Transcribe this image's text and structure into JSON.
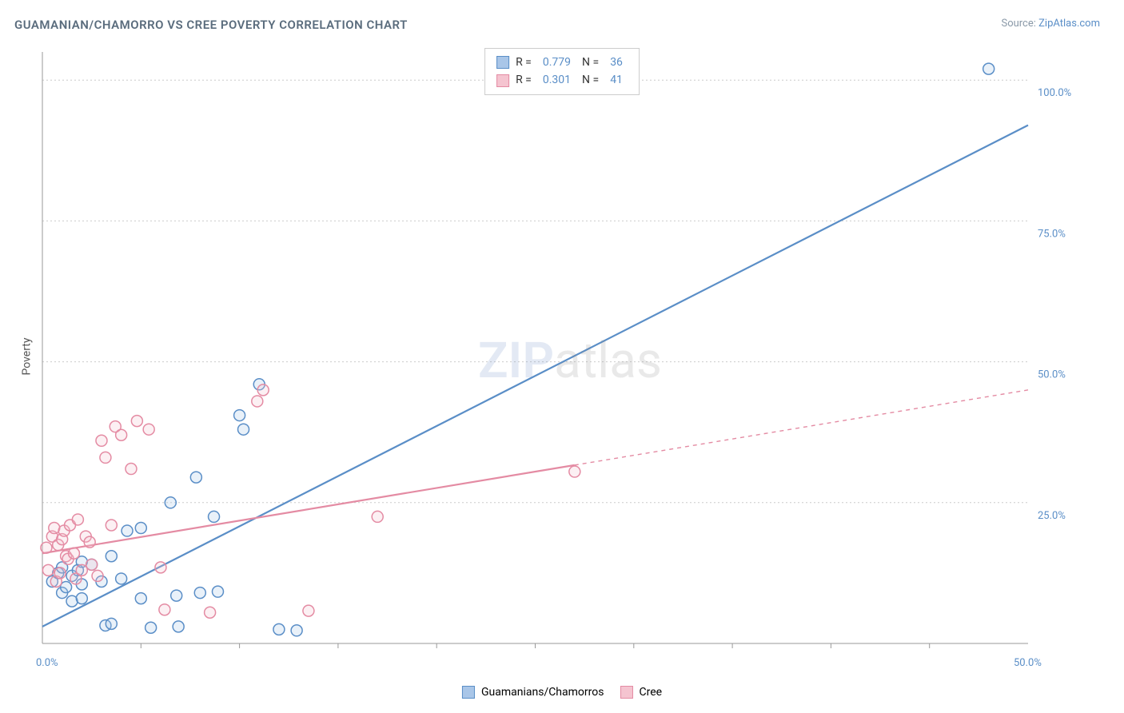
{
  "title": "GUAMANIAN/CHAMORRO VS CREE POVERTY CORRELATION CHART",
  "source_label": "Source: ",
  "source_name": "ZipAtlas.com",
  "ylabel": "Poverty",
  "watermark_a": "ZIP",
  "watermark_b": "atlas",
  "chart": {
    "type": "scatter",
    "xlim": [
      0,
      50
    ],
    "ylim": [
      0,
      105
    ],
    "x_ticks": [
      0,
      50
    ],
    "x_tick_labels": [
      "0.0%",
      "50.0%"
    ],
    "x_minor_ticks": [
      5,
      10,
      15,
      20,
      25,
      30,
      35,
      40,
      45
    ],
    "y_ticks": [
      25,
      50,
      75,
      100
    ],
    "y_tick_labels": [
      "25.0%",
      "50.0%",
      "75.0%",
      "100.0%"
    ],
    "background_color": "#ffffff",
    "grid_color": "#cccccc",
    "axis_color": "#999999",
    "tick_label_color": "#5a8ec7",
    "marker_radius": 7,
    "marker_stroke_width": 1.5,
    "marker_fill_opacity": 0.25,
    "series": [
      {
        "name": "Guamanians/Chamorros",
        "color": "#5a8ec7",
        "fill": "#a9c6e8",
        "R": "0.779",
        "N": "36",
        "trend": {
          "x1": 0,
          "y1": 3,
          "x2": 50,
          "y2": 92,
          "solid_x_end": 50
        },
        "points": [
          [
            0.5,
            11
          ],
          [
            0.8,
            12.5
          ],
          [
            1,
            9
          ],
          [
            1,
            13.5
          ],
          [
            1.2,
            10
          ],
          [
            1.5,
            7.5
          ],
          [
            1.5,
            12
          ],
          [
            1.8,
            13
          ],
          [
            2,
            8
          ],
          [
            2,
            10.5
          ],
          [
            2,
            14.5
          ],
          [
            2.5,
            14
          ],
          [
            3,
            11
          ],
          [
            3.2,
            3.2
          ],
          [
            3.5,
            15.5
          ],
          [
            3.5,
            3.5
          ],
          [
            4,
            11.5
          ],
          [
            4.3,
            20
          ],
          [
            5,
            8
          ],
          [
            5,
            20.5
          ],
          [
            5.5,
            2.8
          ],
          [
            6.5,
            25
          ],
          [
            6.8,
            8.5
          ],
          [
            6.9,
            3
          ],
          [
            7.8,
            29.5
          ],
          [
            8,
            9
          ],
          [
            8.7,
            22.5
          ],
          [
            8.9,
            9.2
          ],
          [
            10,
            40.5
          ],
          [
            10.2,
            38
          ],
          [
            11,
            46
          ],
          [
            12,
            2.5
          ],
          [
            12.9,
            2.3
          ],
          [
            48,
            102
          ]
        ]
      },
      {
        "name": "Cree",
        "color": "#e48ba3",
        "fill": "#f5c4d0",
        "R": "0.301",
        "N": "41",
        "trend": {
          "x1": 0,
          "y1": 16,
          "x2": 50,
          "y2": 45,
          "solid_x_end": 27
        },
        "points": [
          [
            0.2,
            17
          ],
          [
            0.3,
            13
          ],
          [
            0.5,
            19
          ],
          [
            0.6,
            20.5
          ],
          [
            0.7,
            11
          ],
          [
            0.8,
            17.5
          ],
          [
            0.9,
            12.5
          ],
          [
            1,
            18.5
          ],
          [
            1.1,
            20
          ],
          [
            1.2,
            15.5
          ],
          [
            1.3,
            15
          ],
          [
            1.4,
            21
          ],
          [
            1.6,
            16
          ],
          [
            1.7,
            11.5
          ],
          [
            1.8,
            22
          ],
          [
            2,
            13
          ],
          [
            2.2,
            19
          ],
          [
            2.4,
            18
          ],
          [
            2.5,
            14
          ],
          [
            2.8,
            12
          ],
          [
            3,
            36
          ],
          [
            3.2,
            33
          ],
          [
            3.5,
            21
          ],
          [
            3.7,
            38.5
          ],
          [
            4,
            37
          ],
          [
            4.5,
            31
          ],
          [
            4.8,
            39.5
          ],
          [
            5.4,
            38
          ],
          [
            6,
            13.5
          ],
          [
            6.2,
            6
          ],
          [
            8.5,
            5.5
          ],
          [
            10.9,
            43
          ],
          [
            11.2,
            45
          ],
          [
            13.5,
            5.8
          ],
          [
            17,
            22.5
          ],
          [
            27,
            30.5
          ]
        ]
      }
    ]
  },
  "legend_top": {
    "r_label": "R =",
    "n_label": "N ="
  }
}
